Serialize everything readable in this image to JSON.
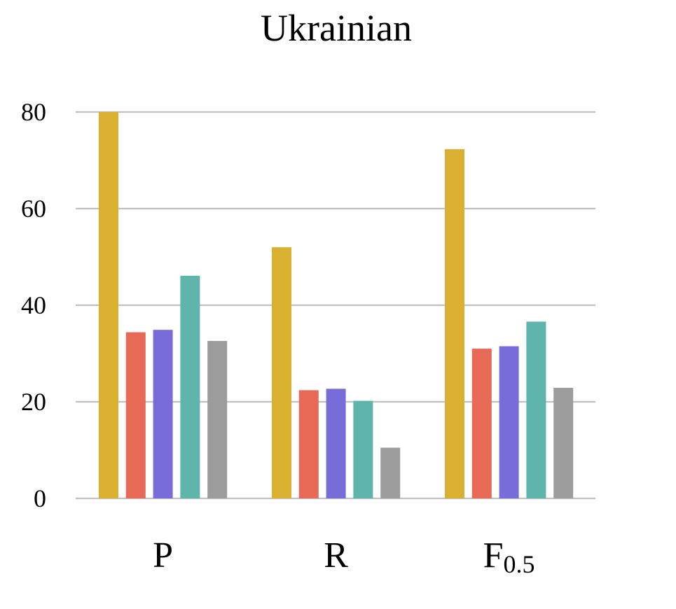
{
  "chart_data": {
    "type": "bar",
    "title": "Ukrainian",
    "categories": [
      {
        "main": "P",
        "sub": ""
      },
      {
        "main": "R",
        "sub": ""
      },
      {
        "main": "F",
        "sub": "0.5"
      }
    ],
    "series": [
      {
        "color": "#d9b030",
        "values": [
          80.0,
          52.0,
          72.3
        ]
      },
      {
        "color": "#e66a56",
        "values": [
          34.4,
          22.4,
          31.0
        ]
      },
      {
        "color": "#776cd8",
        "values": [
          34.9,
          22.7,
          31.5
        ]
      },
      {
        "color": "#5fb5ac",
        "values": [
          46.1,
          20.2,
          36.6
        ]
      },
      {
        "color": "#9c9c9c",
        "values": [
          32.6,
          10.5,
          22.9
        ]
      }
    ],
    "yticks": [
      "0",
      "20",
      "40",
      "60",
      "80"
    ],
    "ylim": [
      0,
      80
    ],
    "grid": true,
    "legend": "none",
    "xlabel": "",
    "ylabel": ""
  }
}
